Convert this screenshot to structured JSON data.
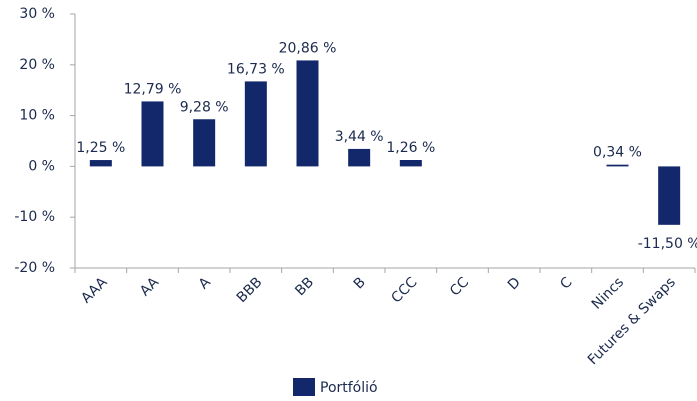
{
  "chart_data": {
    "type": "bar",
    "categories": [
      "AAA",
      "AA",
      "A",
      "BBB",
      "BB",
      "B",
      "CCC",
      "CC",
      "D",
      "C",
      "Nincs",
      "Futures & Swaps"
    ],
    "series": [
      {
        "name": "Portfólió",
        "color": "#13286b",
        "values": [
          1.25,
          12.79,
          9.28,
          16.73,
          20.86,
          3.44,
          1.26,
          null,
          null,
          null,
          0.34,
          -11.5
        ],
        "value_labels": [
          "1,25 %",
          "12,79 %",
          "9,28 %",
          "16,73 %",
          "20,86 %",
          "3,44 %",
          "1,26 %",
          null,
          null,
          null,
          "0,34 %",
          "-11,50 %"
        ]
      }
    ],
    "ylim": [
      -20,
      30
    ],
    "yticks": [
      {
        "value": -20,
        "label": "-20 %"
      },
      {
        "value": -10,
        "label": "-10 %"
      },
      {
        "value": 0,
        "label": "0 %"
      },
      {
        "value": 10,
        "label": "10 %"
      },
      {
        "value": 20,
        "label": "20 %"
      },
      {
        "value": 30,
        "label": "30 %"
      }
    ],
    "grid": false,
    "legend": "bottom"
  }
}
